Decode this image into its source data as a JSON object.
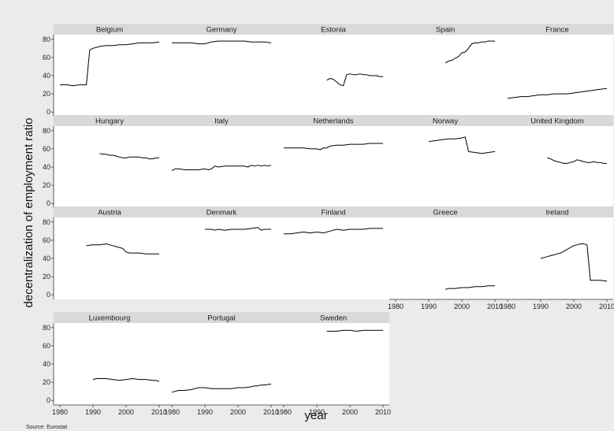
{
  "figure": {
    "ylabel": "decentralization of employment ratio",
    "xlabel": "year",
    "note": "Source: Eurostat"
  },
  "axes": {
    "x_ticks": [
      "1980",
      "1990",
      "2000",
      "2010"
    ],
    "y_ticks": [
      "0",
      "20",
      "40",
      "60",
      "80"
    ],
    "xlim": [
      1978,
      2012
    ],
    "ylim": [
      -5,
      85
    ]
  },
  "colors": {
    "background": "#ebebeb",
    "panel": "#ffffff",
    "strip": "#d9d9d9",
    "line": "#000000",
    "axis": "#333333"
  },
  "chart_data": [
    {
      "type": "line",
      "title": "Belgium",
      "x": [
        1980,
        1982,
        1984,
        1986,
        1988,
        1989,
        1990,
        1992,
        1994,
        1996,
        1998,
        2000,
        2002,
        2004,
        2006,
        2008,
        2010
      ],
      "y": [
        30,
        30,
        29,
        30,
        30,
        68,
        70,
        72,
        73,
        73,
        74,
        74,
        75,
        76,
        76,
        76,
        77
      ]
    },
    {
      "type": "line",
      "title": "Germany",
      "x": [
        1980,
        1982,
        1984,
        1986,
        1988,
        1990,
        1992,
        1994,
        1996,
        1998,
        2000,
        2002,
        2004,
        2006,
        2008,
        2010
      ],
      "y": [
        76,
        76,
        76,
        76,
        75,
        75,
        77,
        78,
        78,
        78,
        78,
        78,
        77,
        77,
        77,
        76
      ]
    },
    {
      "type": "line",
      "title": "Estonia",
      "x": [
        1993,
        1994,
        1995,
        1996,
        1997,
        1998,
        1999,
        2000,
        2001,
        2002,
        2003,
        2004,
        2005,
        2006,
        2007,
        2008,
        2009,
        2010
      ],
      "y": [
        35,
        37,
        36,
        33,
        30,
        29,
        41,
        42,
        41,
        41,
        42,
        41,
        41,
        40,
        40,
        40,
        39,
        39
      ]
    },
    {
      "type": "line",
      "title": "Spain",
      "x": [
        1995,
        1996,
        1997,
        1998,
        1999,
        2000,
        2001,
        2002,
        2003,
        2004,
        2005,
        2006,
        2007,
        2008,
        2009,
        2010
      ],
      "y": [
        54,
        56,
        57,
        59,
        61,
        65,
        66,
        70,
        75,
        76,
        76,
        77,
        77,
        78,
        78,
        78
      ]
    },
    {
      "type": "line",
      "title": "France",
      "x": [
        1980,
        1982,
        1984,
        1986,
        1988,
        1990,
        1992,
        1994,
        1996,
        1998,
        2000,
        2002,
        2004,
        2006,
        2008,
        2010
      ],
      "y": [
        15,
        16,
        17,
        17,
        18,
        19,
        19,
        20,
        20,
        20,
        21,
        22,
        23,
        24,
        25,
        26
      ]
    },
    {
      "type": "line",
      "title": "Hungary",
      "x": [
        1992,
        1993,
        1994,
        1995,
        1996,
        1997,
        1998,
        1999,
        2000,
        2001,
        2002,
        2003,
        2004,
        2005,
        2006,
        2007,
        2008,
        2009,
        2010
      ],
      "y": [
        55,
        54,
        54,
        53,
        53,
        52,
        51,
        50,
        50,
        51,
        51,
        51,
        51,
        50,
        50,
        49,
        49,
        50,
        50
      ]
    },
    {
      "type": "line",
      "title": "Italy",
      "x": [
        1980,
        1981,
        1982,
        1984,
        1986,
        1988,
        1990,
        1991,
        1992,
        1993,
        1994,
        1996,
        1998,
        2000,
        2002,
        2003,
        2004,
        2005,
        2006,
        2007,
        2008,
        2009,
        2010
      ],
      "y": [
        36,
        38,
        38,
        37,
        37,
        37,
        38,
        37,
        38,
        41,
        40,
        41,
        41,
        41,
        41,
        40,
        42,
        41,
        42,
        41,
        42,
        41,
        42
      ]
    },
    {
      "type": "line",
      "title": "Netherlands",
      "x": [
        1980,
        1982,
        1984,
        1986,
        1988,
        1990,
        1991,
        1992,
        1993,
        1994,
        1996,
        1998,
        2000,
        2002,
        2004,
        2006,
        2008,
        2010
      ],
      "y": [
        61,
        61,
        61,
        61,
        60,
        60,
        59,
        61,
        61,
        63,
        64,
        64,
        65,
        65,
        65,
        66,
        66,
        66
      ]
    },
    {
      "type": "line",
      "title": "Norway",
      "x": [
        1990,
        1992,
        1994,
        1996,
        1998,
        2000,
        2001,
        2002,
        2004,
        2006,
        2008,
        2010
      ],
      "y": [
        68,
        69,
        70,
        71,
        71,
        72,
        73,
        57,
        56,
        55,
        56,
        57
      ]
    },
    {
      "type": "line",
      "title": "United Kingdom",
      "x": [
        1992,
        1993,
        1994,
        1995,
        1996,
        1997,
        1998,
        1999,
        2000,
        2001,
        2002,
        2003,
        2004,
        2005,
        2006,
        2007,
        2008,
        2009,
        2010
      ],
      "y": [
        50,
        49,
        47,
        46,
        45,
        44,
        44,
        45,
        46,
        48,
        47,
        46,
        45,
        45,
        46,
        45,
        45,
        44,
        44
      ]
    },
    {
      "type": "line",
      "title": "Austria",
      "x": [
        1988,
        1990,
        1992,
        1994,
        1995,
        1996,
        1997,
        1998,
        1999,
        2000,
        2001,
        2002,
        2004,
        2006,
        2008,
        2010
      ],
      "y": [
        54,
        55,
        55,
        56,
        55,
        54,
        53,
        52,
        51,
        47,
        46,
        46,
        46,
        45,
        45,
        45
      ]
    },
    {
      "type": "line",
      "title": "Denmark",
      "x": [
        1990,
        1992,
        1993,
        1994,
        1996,
        1998,
        2000,
        2002,
        2004,
        2006,
        2007,
        2008,
        2010
      ],
      "y": [
        72,
        72,
        71,
        72,
        71,
        72,
        72,
        72,
        73,
        74,
        71,
        72,
        72
      ]
    },
    {
      "type": "line",
      "title": "Finland",
      "x": [
        1980,
        1982,
        1984,
        1986,
        1988,
        1990,
        1992,
        1994,
        1996,
        1998,
        2000,
        2002,
        2004,
        2006,
        2008,
        2010
      ],
      "y": [
        67,
        67,
        68,
        69,
        68,
        69,
        68,
        70,
        72,
        71,
        72,
        72,
        72,
        73,
        73,
        73
      ]
    },
    {
      "type": "line",
      "title": "Greece",
      "x": [
        1995,
        1996,
        1998,
        2000,
        2002,
        2004,
        2006,
        2008,
        2010
      ],
      "y": [
        6,
        7,
        7,
        8,
        8,
        9,
        9,
        10,
        10
      ]
    },
    {
      "type": "line",
      "title": "Ireland",
      "x": [
        1990,
        1991,
        1992,
        1993,
        1994,
        1995,
        1996,
        1997,
        1998,
        1999,
        2000,
        2001,
        2002,
        2003,
        2004,
        2005,
        2006,
        2008,
        2010
      ],
      "y": [
        40,
        41,
        42,
        43,
        44,
        45,
        46,
        48,
        50,
        52,
        54,
        55,
        56,
        56,
        55,
        16,
        16,
        16,
        15
      ]
    },
    {
      "type": "line",
      "title": "Luxembourg",
      "x": [
        1990,
        1991,
        1992,
        1994,
        1996,
        1998,
        2000,
        2002,
        2004,
        2006,
        2008,
        2009,
        2010
      ],
      "y": [
        23,
        24,
        24,
        24,
        23,
        22,
        23,
        24,
        23,
        23,
        22,
        22,
        21
      ]
    },
    {
      "type": "line",
      "title": "Portugal",
      "x": [
        1980,
        1982,
        1984,
        1986,
        1988,
        1990,
        1992,
        1994,
        1996,
        1998,
        2000,
        2002,
        2004,
        2005,
        2006,
        2007,
        2008,
        2010
      ],
      "y": [
        9,
        11,
        11,
        12,
        14,
        14,
        13,
        13,
        13,
        13,
        14,
        14,
        15,
        16,
        16,
        17,
        17,
        18
      ]
    },
    {
      "type": "line",
      "title": "Sweden",
      "x": [
        1993,
        1994,
        1996,
        1998,
        2000,
        2002,
        2004,
        2006,
        2008,
        2010
      ],
      "y": [
        76,
        76,
        76,
        77,
        77,
        76,
        77,
        77,
        77,
        77
      ]
    }
  ]
}
